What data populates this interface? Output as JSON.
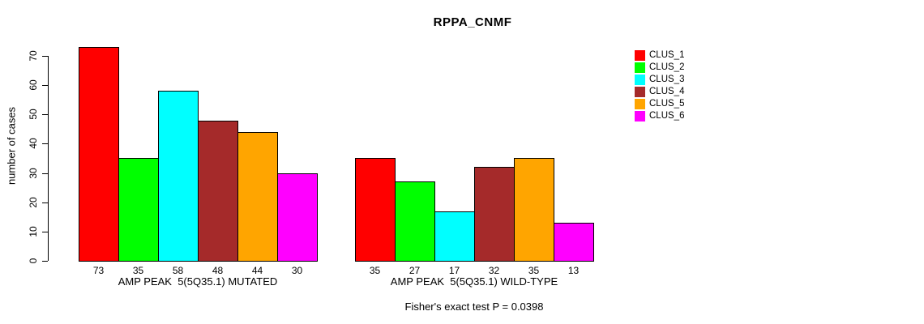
{
  "chart_data": {
    "type": "bar",
    "title": "RPPA_CNMF",
    "ylabel": "number of cases",
    "ylim": [
      0,
      70
    ],
    "yticks": [
      0,
      10,
      20,
      30,
      40,
      50,
      60,
      70
    ],
    "grid": false,
    "legend_position": "right",
    "legend": [
      {
        "label": "CLUS_1",
        "color": "#ff0000"
      },
      {
        "label": "CLUS_2",
        "color": "#00ff00"
      },
      {
        "label": "CLUS_3",
        "color": "#00ffff"
      },
      {
        "label": "CLUS_4",
        "color": "#a52a2a"
      },
      {
        "label": "CLUS_5",
        "color": "#ffa500"
      },
      {
        "label": "CLUS_6",
        "color": "#ff00ff"
      }
    ],
    "groups": [
      {
        "label": "AMP PEAK  5(5Q35.1) MUTATED",
        "values": [
          73,
          35,
          58,
          48,
          44,
          30
        ]
      },
      {
        "label": "AMP PEAK  5(5Q35.1) WILD-TYPE",
        "values": [
          35,
          27,
          17,
          32,
          35,
          13
        ]
      }
    ],
    "footnote": "Fisher's exact test P = 0.0398"
  }
}
